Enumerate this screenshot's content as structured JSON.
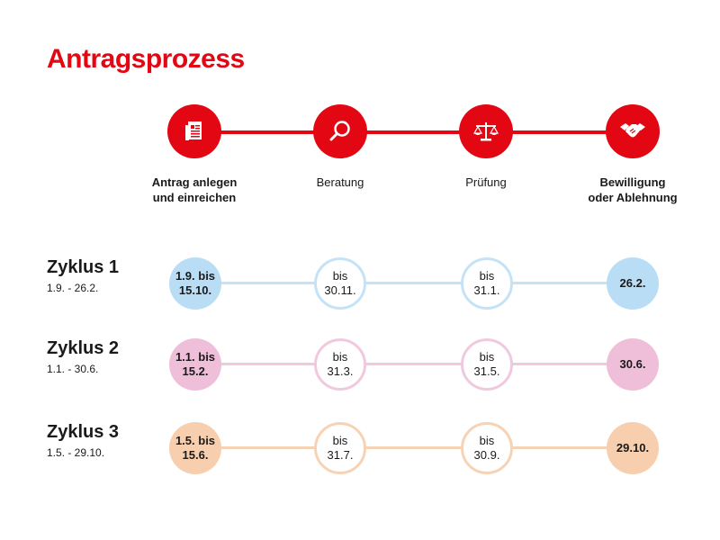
{
  "title": "Antragsprozess",
  "colors": {
    "brand_red": "#e30613",
    "cycle1_fill": "#b8ddf5",
    "cycle1_line": "#c4e3f7",
    "cycle2_fill": "#efbfda",
    "cycle2_line": "#f0c9de",
    "cycle3_fill": "#f7cfae",
    "cycle3_line": "#f7d3b6"
  },
  "steps": [
    {
      "label": "Antrag anlegen\nund einreichen",
      "icon": "document-icon",
      "bold": true
    },
    {
      "label": "Beratung",
      "icon": "search-icon",
      "bold": false
    },
    {
      "label": "Prüfung",
      "icon": "scales-icon",
      "bold": false
    },
    {
      "label": "Bewilligung\noder Ablehnung",
      "icon": "handshake-icon",
      "bold": true
    }
  ],
  "cycles": [
    {
      "name": "Zyklus 1",
      "range": "1.9. - 26.2.",
      "nodes": [
        "1.9. bis\n15.10.",
        "bis\n30.11.",
        "bis\n31.1.",
        "26.2."
      ]
    },
    {
      "name": "Zyklus 2",
      "range": "1.1. - 30.6.",
      "nodes": [
        "1.1. bis\n15.2.",
        "bis\n31.3.",
        "bis\n31.5.",
        "30.6."
      ]
    },
    {
      "name": "Zyklus 3",
      "range": "1.5. - 29.10.",
      "nodes": [
        "1.5. bis\n15.6.",
        "bis\n31.7.",
        "bis\n30.9.",
        "29.10."
      ]
    }
  ]
}
